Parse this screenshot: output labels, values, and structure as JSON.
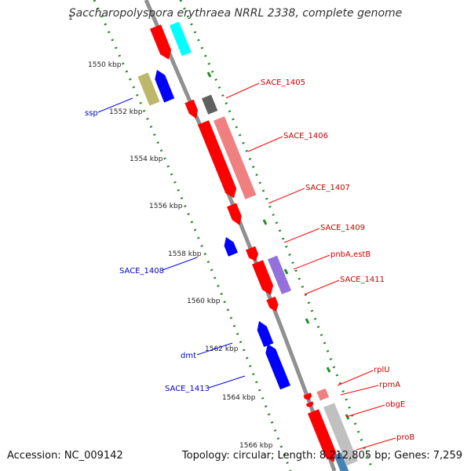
{
  "title": "Saccharopolyspora erythraea NRRL 2338, complete genome",
  "accession": "Accession: NC_009142",
  "summary": "Topology: circular; Length: 8,212,805 bp; Genes: 7,259",
  "ticks": [
    "1550 kbp",
    "1552 kbp",
    "1554 kbp",
    "1556 kbp",
    "1558 kbp",
    "1560 kbp",
    "1562 kbp",
    "1564 kbp",
    "1566 kbp"
  ],
  "top_partial_label": "1",
  "forward_genes": [
    "SACE_1405",
    "SACE_1406",
    "SACE_1407",
    "SACE_1409",
    "pnbA,estB",
    "SACE_1411",
    "rplU",
    "rpmA",
    "obgE",
    "proB"
  ],
  "reverse_genes": [
    "ssp",
    "SACE_1408",
    "dmt",
    "SACE_1413"
  ],
  "colors": {
    "backbone": "#909090",
    "tick_dots": "#228b22",
    "forward_gene": "#ff0000",
    "forward_label": "#cc0000",
    "reverse_gene": "#0000ff",
    "reverse_label": "#0000cc",
    "cds_feature": "#f08080",
    "cds_other": "#9370db",
    "cds_gray": "#c0c0c0",
    "cds_olive": "#bdb76b",
    "cds_cyan": "#00ffff"
  }
}
